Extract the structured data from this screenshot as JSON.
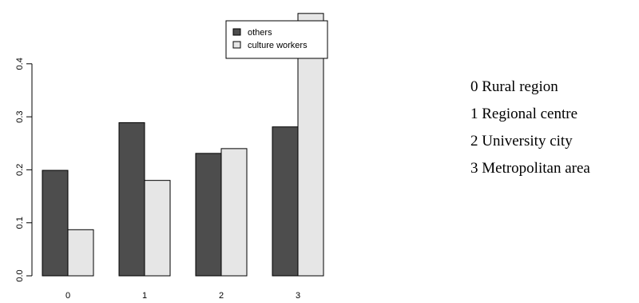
{
  "chart_data": {
    "type": "bar",
    "categories": [
      "0",
      "1",
      "2",
      "3"
    ],
    "series": [
      {
        "name": "others",
        "values": [
          0.199,
          0.289,
          0.231,
          0.281
        ],
        "color": "#4d4d4d"
      },
      {
        "name": "culture workers",
        "values": [
          0.087,
          0.18,
          0.24,
          0.495
        ],
        "color": "#e6e6e6"
      }
    ],
    "title": "",
    "xlabel": "",
    "ylabel": "",
    "ylim": [
      0,
      0.5
    ],
    "yticks": [
      "0.0",
      "0.1",
      "0.2",
      "0.3",
      "0.4"
    ],
    "grid": false,
    "legend_position": "top-right"
  },
  "region_key": {
    "items": [
      "0 Rural region",
      "1 Regional centre",
      "2 University city",
      "3 Metropolitan area"
    ]
  }
}
